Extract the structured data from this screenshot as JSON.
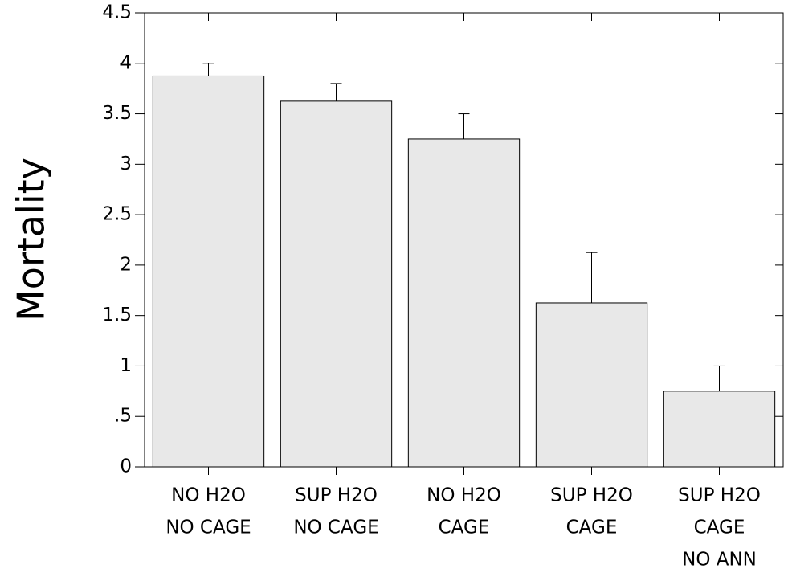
{
  "chart_data": {
    "type": "bar",
    "y_label": "Mortality",
    "categories": [
      [
        "NO H2O",
        "NO CAGE"
      ],
      [
        "SUP H2O",
        "NO CAGE"
      ],
      [
        "NO H2O",
        "CAGE"
      ],
      [
        "SUP H2O",
        "CAGE"
      ],
      [
        "SUP H2O",
        "CAGE",
        "NO ANN"
      ]
    ],
    "values": [
      3.875,
      3.625,
      3.25,
      1.625,
      0.75
    ],
    "errors": [
      0.125,
      0.175,
      0.25,
      0.5,
      0.25
    ],
    "color": "#e8e8e8",
    "ylim": [
      0,
      4.5
    ],
    "yticks": [
      0,
      {
        "value": 0.5,
        "label": ".5"
      },
      1,
      1.5,
      2,
      2.5,
      3,
      3.5,
      4,
      4.5
    ]
  }
}
